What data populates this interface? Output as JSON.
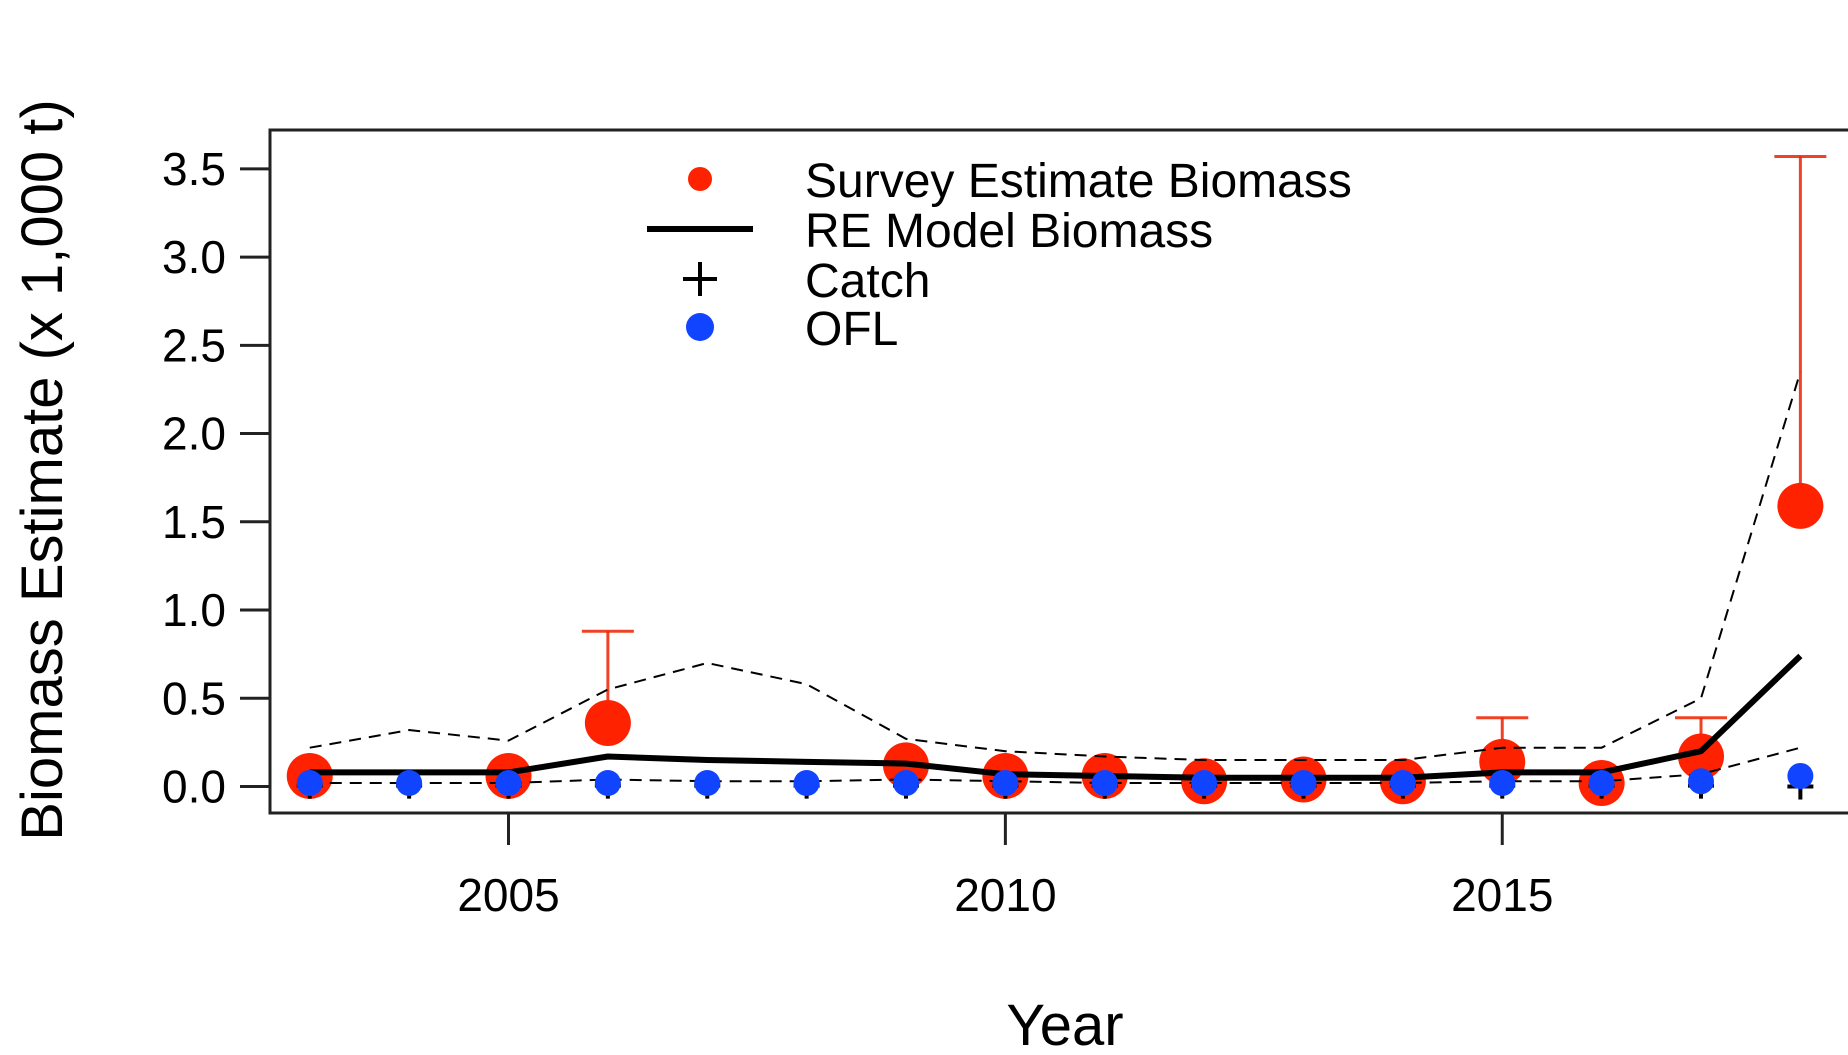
{
  "chart_data": {
    "type": "line",
    "xlabel": "Year",
    "ylabel": "Biomass Estimate (x 1,000 t)",
    "xlim": [
      2002.6,
      2018.6
    ],
    "ylim": [
      -0.15,
      3.72
    ],
    "x_ticks": [
      2005,
      2010,
      2015
    ],
    "y_ticks": [
      0.0,
      0.5,
      1.0,
      1.5,
      2.0,
      2.5,
      3.0,
      3.5
    ],
    "y_tick_labels": [
      "0.0",
      "0.5",
      "1.0",
      "1.5",
      "2.0",
      "2.5",
      "3.0",
      "3.5"
    ],
    "x_tick_labels": [
      "2005",
      "2010",
      "2015"
    ],
    "grid": false,
    "legend_position": "top-center",
    "series": [
      {
        "name": "Survey Estimate Biomass",
        "kind": "points-with-error",
        "color": "#ff2200",
        "points": [
          {
            "x": 2003,
            "y": 0.06,
            "upper": null
          },
          {
            "x": 2005,
            "y": 0.06,
            "upper": null
          },
          {
            "x": 2006,
            "y": 0.36,
            "upper": 0.88
          },
          {
            "x": 2009,
            "y": 0.12,
            "upper": null
          },
          {
            "x": 2010,
            "y": 0.06,
            "upper": null
          },
          {
            "x": 2011,
            "y": 0.06,
            "upper": null
          },
          {
            "x": 2012,
            "y": 0.03,
            "upper": null
          },
          {
            "x": 2013,
            "y": 0.04,
            "upper": null
          },
          {
            "x": 2014,
            "y": 0.03,
            "upper": null
          },
          {
            "x": 2015,
            "y": 0.14,
            "upper": 0.39
          },
          {
            "x": 2016,
            "y": 0.02,
            "upper": null
          },
          {
            "x": 2017,
            "y": 0.17,
            "upper": 0.39
          },
          {
            "x": 2018,
            "y": 1.59,
            "upper": 3.57
          }
        ]
      },
      {
        "name": "RE Model Biomass",
        "kind": "line",
        "color": "#000000",
        "x": [
          2003,
          2004,
          2005,
          2006,
          2007,
          2008,
          2009,
          2010,
          2011,
          2012,
          2013,
          2014,
          2015,
          2016,
          2017,
          2018
        ],
        "y": [
          0.08,
          0.08,
          0.08,
          0.17,
          0.15,
          0.14,
          0.13,
          0.07,
          0.06,
          0.05,
          0.05,
          0.05,
          0.08,
          0.08,
          0.2,
          0.74
        ]
      },
      {
        "kind": "dashed-line",
        "color": "#000000",
        "x": [
          2003,
          2004,
          2005,
          2006,
          2007,
          2008,
          2009,
          2010,
          2011,
          2012,
          2013,
          2014,
          2015,
          2016,
          2017,
          2018
        ],
        "y": [
          0.22,
          0.32,
          0.26,
          0.55,
          0.7,
          0.58,
          0.27,
          0.2,
          0.17,
          0.15,
          0.15,
          0.15,
          0.22,
          0.22,
          0.5,
          2.35
        ]
      },
      {
        "kind": "dashed-line",
        "color": "#000000",
        "x": [
          2003,
          2004,
          2005,
          2006,
          2007,
          2008,
          2009,
          2010,
          2011,
          2012,
          2013,
          2014,
          2015,
          2016,
          2017,
          2018
        ],
        "y": [
          0.02,
          0.02,
          0.02,
          0.04,
          0.03,
          0.03,
          0.04,
          0.03,
          0.02,
          0.02,
          0.02,
          0.02,
          0.03,
          0.03,
          0.07,
          0.22
        ]
      },
      {
        "name": "Catch",
        "kind": "plus-markers",
        "color": "#000000",
        "x": [
          2003,
          2004,
          2005,
          2006,
          2007,
          2008,
          2009,
          2010,
          2011,
          2012,
          2013,
          2014,
          2015,
          2016,
          2017,
          2018
        ],
        "y": [
          0.005,
          0.005,
          0.005,
          0.005,
          0.005,
          0.005,
          0.005,
          0.005,
          0.005,
          0.005,
          0.005,
          0.005,
          0.005,
          0.005,
          0.005,
          0.0
        ]
      },
      {
        "name": "OFL",
        "kind": "points",
        "color": "#1144ff",
        "x": [
          2003,
          2004,
          2005,
          2006,
          2007,
          2008,
          2009,
          2010,
          2011,
          2012,
          2013,
          2014,
          2015,
          2016,
          2017,
          2018
        ],
        "y": [
          0.02,
          0.02,
          0.02,
          0.02,
          0.02,
          0.02,
          0.02,
          0.02,
          0.02,
          0.02,
          0.02,
          0.02,
          0.02,
          0.02,
          0.03,
          0.06
        ]
      }
    ],
    "legend": [
      {
        "label": "Survey Estimate Biomass",
        "symbol": "dot",
        "color": "#ff2200"
      },
      {
        "label": "RE Model Biomass",
        "symbol": "line",
        "color": "#000000"
      },
      {
        "label": "Catch",
        "symbol": "plus",
        "color": "#000000"
      },
      {
        "label": "OFL",
        "symbol": "dot",
        "color": "#1144ff"
      }
    ]
  }
}
